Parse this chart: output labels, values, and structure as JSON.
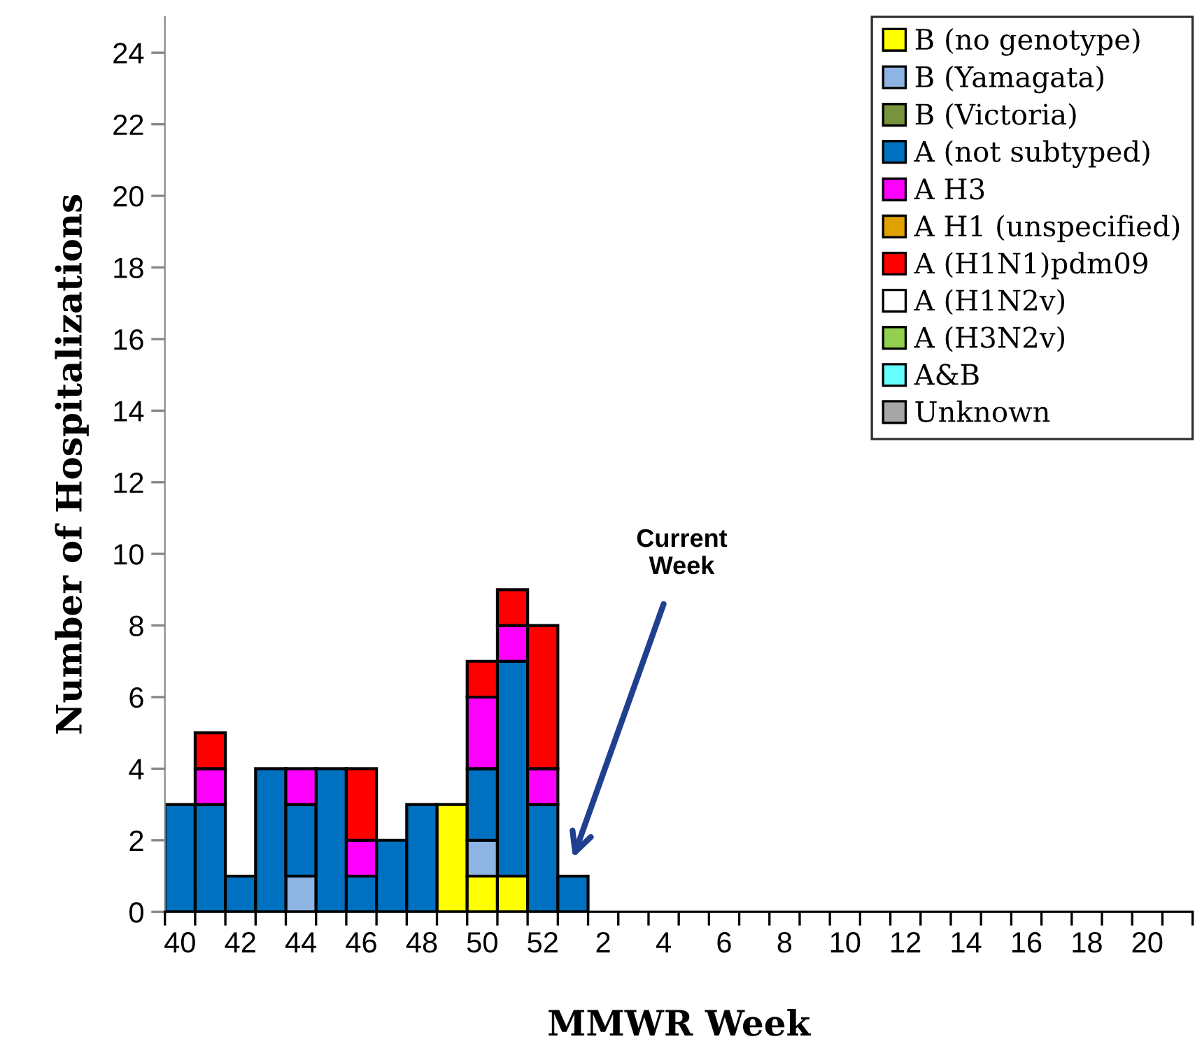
{
  "chart_data": {
    "type": "bar",
    "stacked": true,
    "ylabel": "Number of Hospitalizations",
    "xlabel": "MMWR Week",
    "categories": [
      "40",
      null,
      "42",
      null,
      "44",
      null,
      "46",
      null,
      "48",
      null,
      "50",
      null,
      "52",
      null,
      "2",
      null,
      "4",
      null,
      "6",
      null,
      "8",
      null,
      "10",
      null,
      "12",
      null,
      "14",
      null,
      "16",
      null,
      "18",
      null,
      "20",
      null
    ],
    "ylim": [
      0,
      25
    ],
    "yticks": [
      0,
      2,
      4,
      6,
      8,
      10,
      12,
      14,
      16,
      18,
      20,
      22,
      24
    ],
    "grid": false,
    "legend": "top right",
    "annotations": [
      "Current\nWeek"
    ],
    "series": [
      {
        "name": "B (no genotype)",
        "color": "#ffff00",
        "values": [
          0,
          0,
          0,
          0,
          0,
          0,
          0,
          0,
          0,
          3,
          1,
          1,
          0,
          0,
          null,
          null,
          null,
          null,
          null,
          null,
          null,
          null,
          null,
          null,
          null,
          null,
          null,
          null,
          null,
          null,
          null,
          null,
          null,
          null
        ]
      },
      {
        "name": "B (Yamagata)",
        "color": "#8eb4e3",
        "values": [
          0,
          0,
          0,
          0,
          1,
          0,
          0,
          0,
          0,
          0,
          1,
          0,
          0,
          0,
          null,
          null,
          null,
          null,
          null,
          null,
          null,
          null,
          null,
          null,
          null,
          null,
          null,
          null,
          null,
          null,
          null,
          null,
          null,
          null
        ]
      },
      {
        "name": "B (Victoria)",
        "color": "#77933c",
        "values": [
          0,
          0,
          0,
          0,
          0,
          0,
          0,
          0,
          0,
          0,
          0,
          0,
          0,
          0,
          null,
          null,
          null,
          null,
          null,
          null,
          null,
          null,
          null,
          null,
          null,
          null,
          null,
          null,
          null,
          null,
          null,
          null,
          null,
          null
        ]
      },
      {
        "name": "A (not subtyped)",
        "color": "#0070c0",
        "values": [
          3,
          3,
          1,
          4,
          2,
          4,
          1,
          2,
          3,
          0,
          2,
          6,
          3,
          1,
          null,
          null,
          null,
          null,
          null,
          null,
          null,
          null,
          null,
          null,
          null,
          null,
          null,
          null,
          null,
          null,
          null,
          null,
          null,
          null
        ]
      },
      {
        "name": "A H3",
        "color": "#ff00ff",
        "values": [
          0,
          1,
          0,
          0,
          1,
          0,
          1,
          0,
          0,
          0,
          2,
          1,
          1,
          0,
          null,
          null,
          null,
          null,
          null,
          null,
          null,
          null,
          null,
          null,
          null,
          null,
          null,
          null,
          null,
          null,
          null,
          null,
          null,
          null
        ]
      },
      {
        "name": "A H1 (unspecified)",
        "color": "#e0a000",
        "values": [
          0,
          0,
          0,
          0,
          0,
          0,
          0,
          0,
          0,
          0,
          0,
          0,
          0,
          0,
          null,
          null,
          null,
          null,
          null,
          null,
          null,
          null,
          null,
          null,
          null,
          null,
          null,
          null,
          null,
          null,
          null,
          null,
          null,
          null
        ]
      },
      {
        "name": "A (H1N1)pdm09",
        "color": "#ff0000",
        "values": [
          0,
          1,
          0,
          0,
          0,
          0,
          2,
          0,
          0,
          0,
          1,
          1,
          4,
          0,
          null,
          null,
          null,
          null,
          null,
          null,
          null,
          null,
          null,
          null,
          null,
          null,
          null,
          null,
          null,
          null,
          null,
          null,
          null,
          null
        ]
      },
      {
        "name": "A (H1N2v)",
        "color": "#ffffff",
        "values": [
          0,
          0,
          0,
          0,
          0,
          0,
          0,
          0,
          0,
          0,
          0,
          0,
          0,
          0,
          null,
          null,
          null,
          null,
          null,
          null,
          null,
          null,
          null,
          null,
          null,
          null,
          null,
          null,
          null,
          null,
          null,
          null,
          null,
          null
        ]
      },
      {
        "name": "A (H3N2v)",
        "color": "#92d050",
        "values": [
          0,
          0,
          0,
          0,
          0,
          0,
          0,
          0,
          0,
          0,
          0,
          0,
          0,
          0,
          null,
          null,
          null,
          null,
          null,
          null,
          null,
          null,
          null,
          null,
          null,
          null,
          null,
          null,
          null,
          null,
          null,
          null,
          null,
          null
        ]
      },
      {
        "name": "A&B",
        "color": "#66ffff",
        "values": [
          0,
          0,
          0,
          0,
          0,
          0,
          0,
          0,
          0,
          0,
          0,
          0,
          0,
          0,
          null,
          null,
          null,
          null,
          null,
          null,
          null,
          null,
          null,
          null,
          null,
          null,
          null,
          null,
          null,
          null,
          null,
          null,
          null,
          null
        ]
      },
      {
        "name": "Unknown",
        "color": "#a6a6a6",
        "values": [
          0,
          0,
          0,
          0,
          0,
          0,
          0,
          0,
          0,
          0,
          0,
          0,
          0,
          0,
          null,
          null,
          null,
          null,
          null,
          null,
          null,
          null,
          null,
          null,
          null,
          null,
          null,
          null,
          null,
          null,
          null,
          null,
          null,
          null
        ]
      }
    ]
  }
}
